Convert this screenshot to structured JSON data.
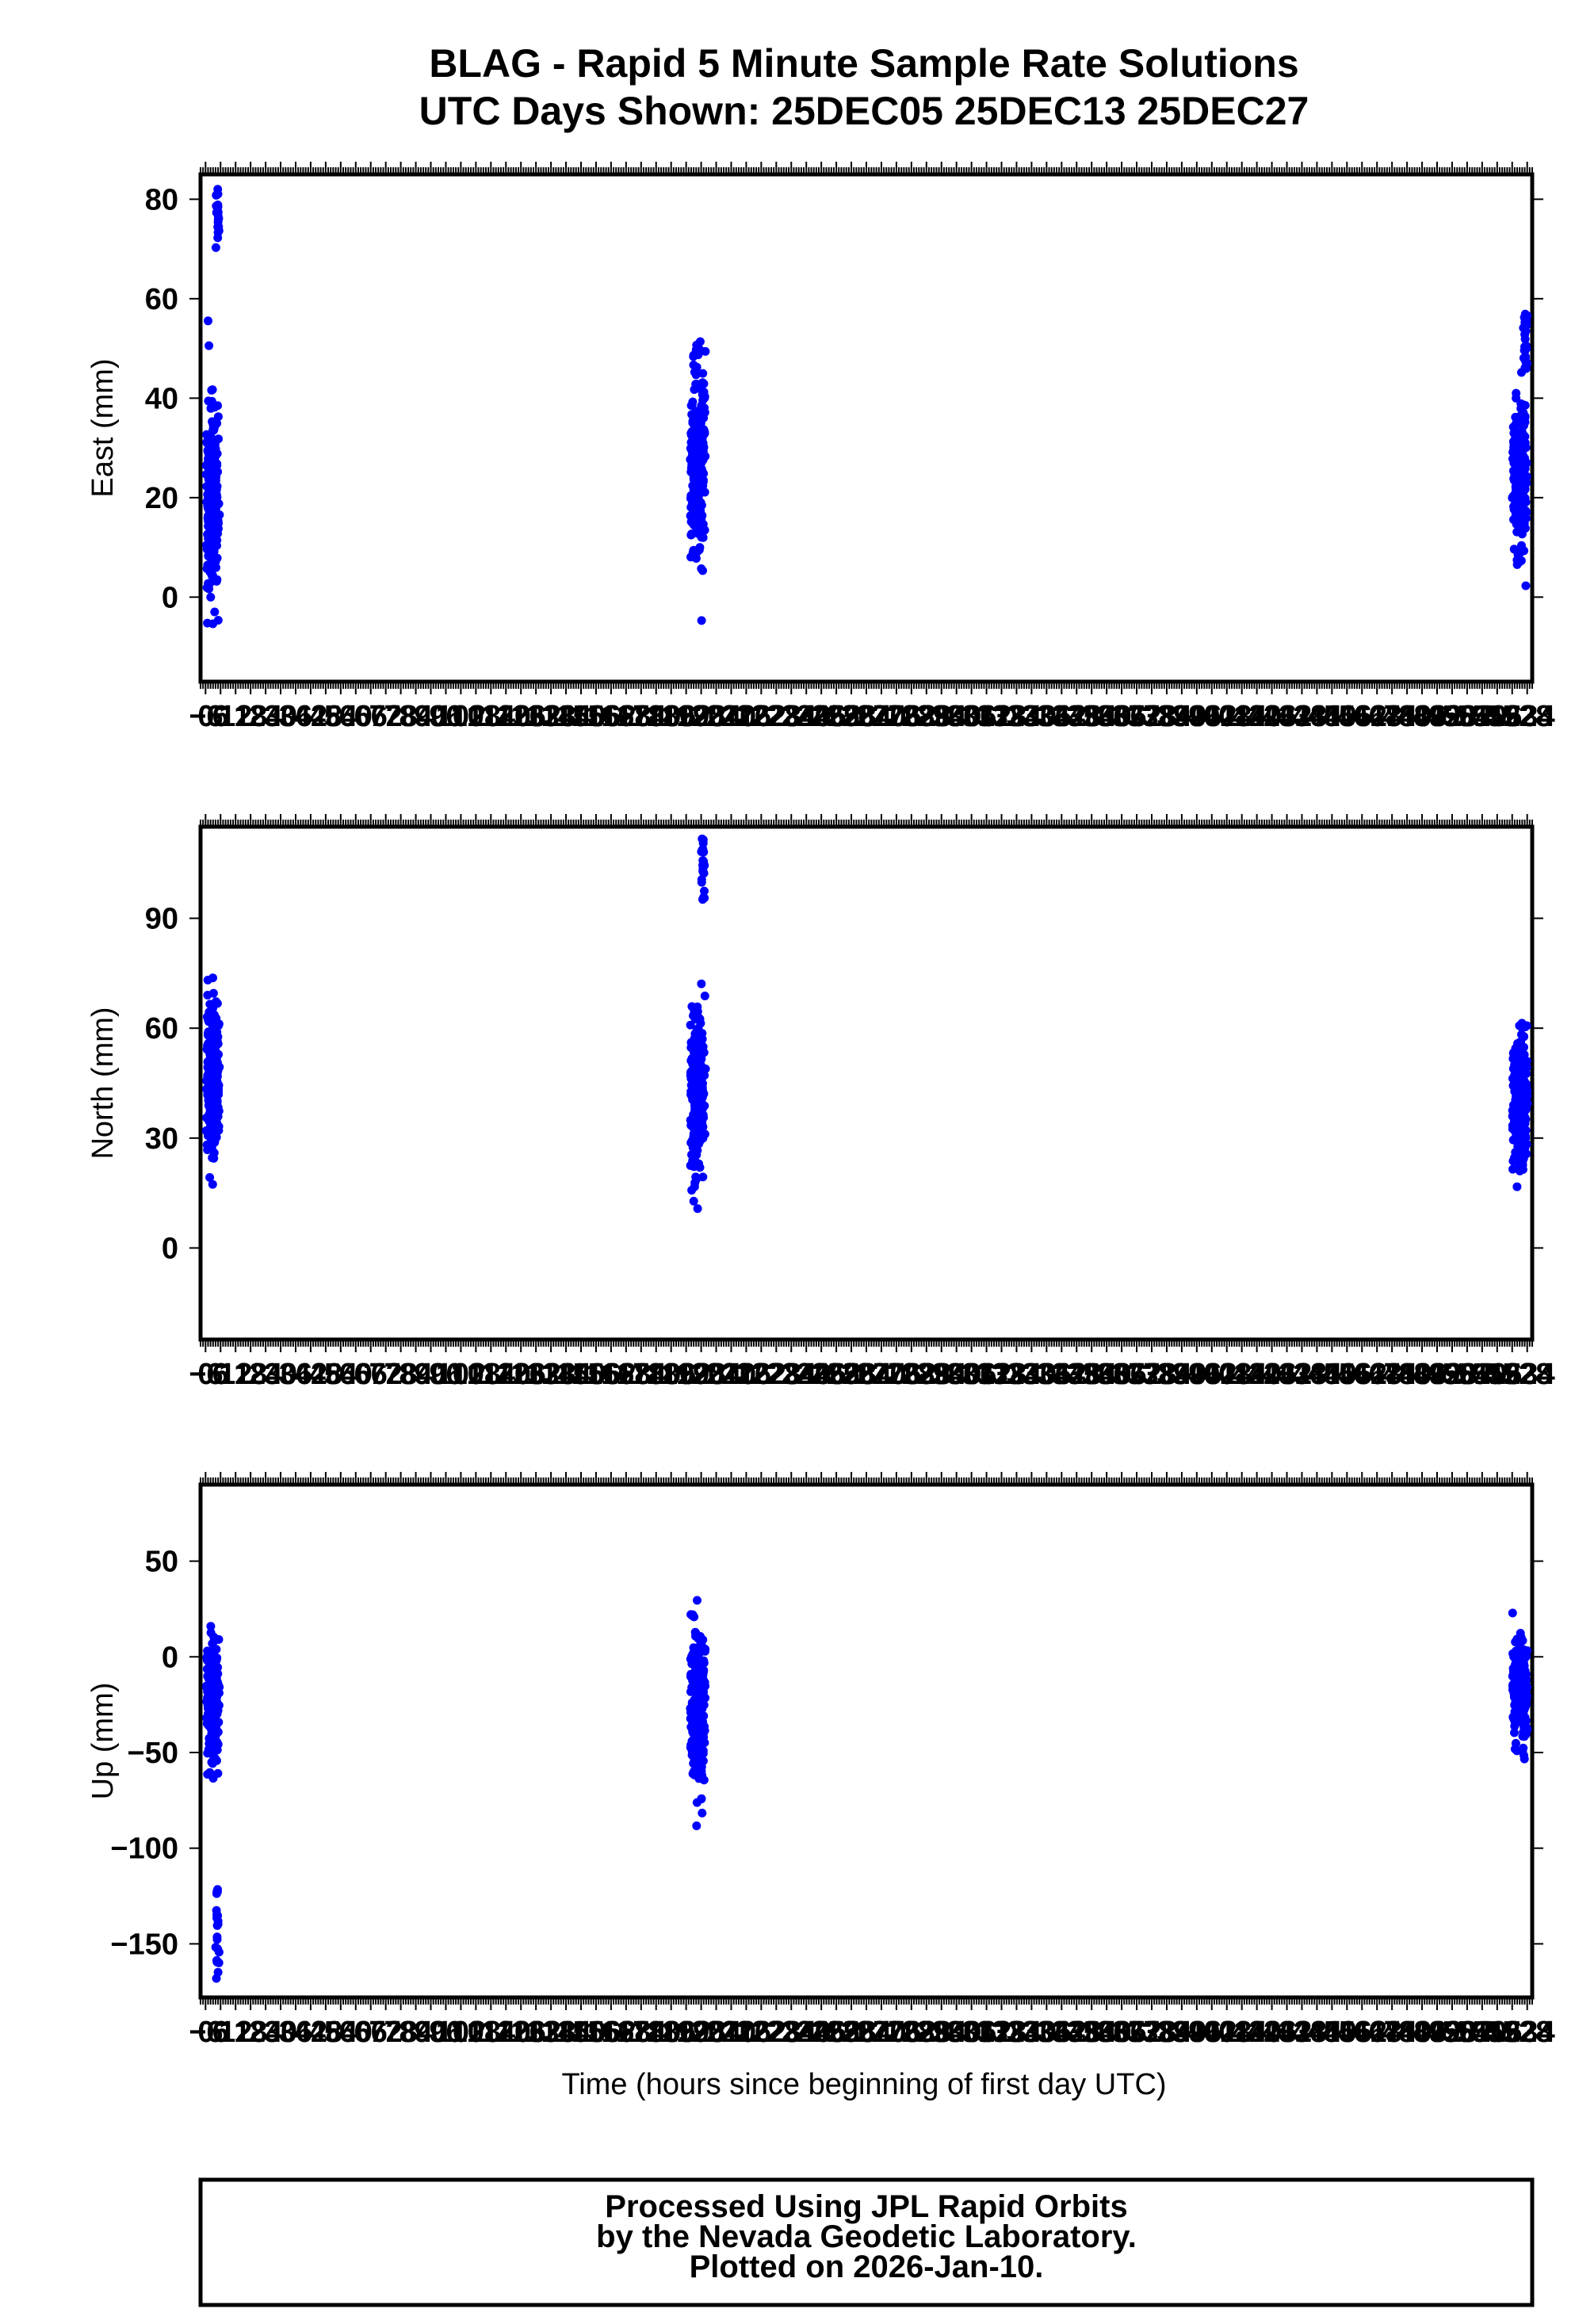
{
  "title_line1": "BLAG - Rapid 5 Minute Sample Rate Solutions",
  "title_line2": "UTC Days Shown:  25DEC05 25DEC13 25DEC27",
  "xlabel": "Time (hours since beginning of first day UTC)",
  "footer": {
    "line1": "Processed Using JPL Rapid Orbits",
    "line2": "by the Nevada Geodetic Laboratory.",
    "line3": "Plotted on 2026-Jan-10."
  },
  "colors": {
    "points": "#0000ff",
    "frame": "#000000"
  },
  "chart_data": [
    {
      "type": "scatter",
      "name": "east",
      "ylabel": "East (mm)",
      "ylim": [
        -17,
        85
      ],
      "yticks": [
        0,
        20,
        40,
        60,
        80
      ],
      "clusters": [
        {
          "x_range": [
            0.2,
            5.6
          ],
          "y_mean": 20,
          "y_spread": 20,
          "trend_end": [
            70,
            82
          ],
          "count": 250,
          "seed": 11
        },
        {
          "x_range": [
            193.5,
            199.8
          ],
          "y_mean": 28,
          "y_spread": 18,
          "trend_end": null,
          "count": 260,
          "seed": 23
        },
        {
          "x_range": [
            522.0,
            528.2
          ],
          "y_mean": 24,
          "y_spread": 14,
          "trend_end": [
            45,
            57
          ],
          "count": 270,
          "seed": 37
        }
      ]
    },
    {
      "type": "scatter",
      "name": "north",
      "ylabel": "North (mm)",
      "ylim": [
        -25,
        115
      ],
      "yticks": [
        0,
        30,
        60,
        90
      ],
      "clusters": [
        {
          "x_range": [
            0.2,
            5.6
          ],
          "y_mean": 45,
          "y_spread": 22,
          "trend_end": null,
          "count": 250,
          "seed": 41
        },
        {
          "x_range": [
            193.5,
            199.8
          ],
          "y_mean": 42,
          "y_spread": 22,
          "trend_end": [
            95,
            113
          ],
          "count": 260,
          "seed": 53
        },
        {
          "x_range": [
            522.0,
            528.2
          ],
          "y_mean": 40,
          "y_spread": 16,
          "trend_end": null,
          "count": 270,
          "seed": 67
        }
      ]
    },
    {
      "type": "scatter",
      "name": "up",
      "ylabel": "Up (mm)",
      "ylim": [
        -178,
        90
      ],
      "yticks": [
        -150,
        -100,
        -50,
        0,
        50
      ],
      "clusters": [
        {
          "x_range": [
            0.2,
            5.6
          ],
          "y_mean": -20,
          "y_spread": 32,
          "trend_end": [
            -170,
            -120
          ],
          "count": 260,
          "seed": 71
        },
        {
          "x_range": [
            193.5,
            199.8
          ],
          "y_mean": -25,
          "y_spread": 38,
          "trend_end": null,
          "count": 260,
          "seed": 83
        },
        {
          "x_range": [
            522.0,
            528.2
          ],
          "y_mean": -20,
          "y_spread": 28,
          "trend_end": null,
          "count": 270,
          "seed": 97
        }
      ]
    }
  ],
  "xlim": [
    -2,
    530
  ],
  "x_tick_step": 6,
  "x_tick_first": -6
}
